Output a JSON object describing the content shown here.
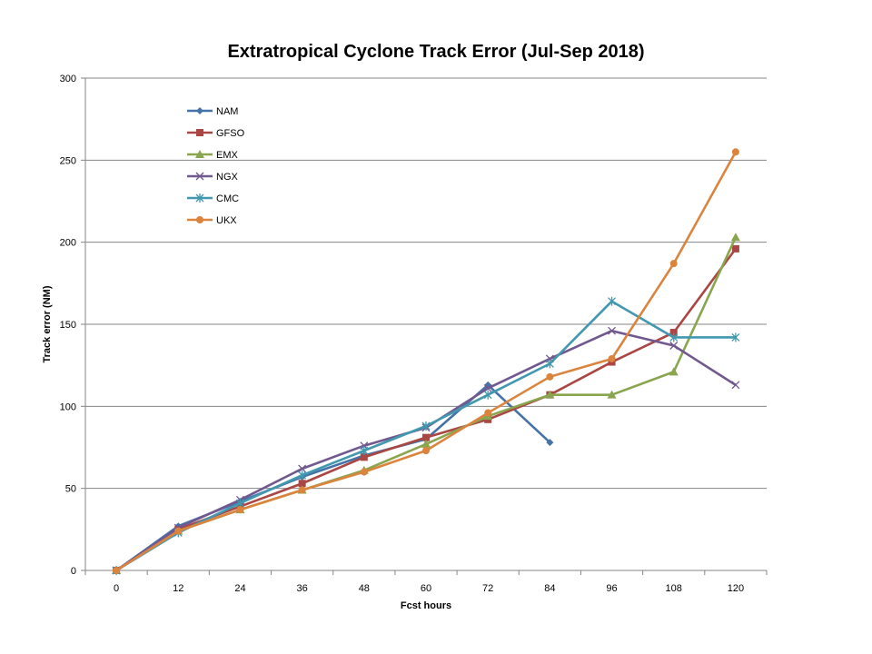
{
  "chart_data": {
    "type": "line",
    "title": "Extratropical Cyclone Track Error (Jul-Sep 2018)",
    "xlabel": "Fcst hours",
    "ylabel": "Track error  (NM)",
    "categories": [
      "0",
      "12",
      "24",
      "36",
      "48",
      "60",
      "72",
      "84",
      "96",
      "108",
      "120"
    ],
    "ylim": [
      0,
      300
    ],
    "yticks": [
      0,
      50,
      100,
      150,
      200,
      250,
      300
    ],
    "grid": "horizontal",
    "legend_position": "top-left",
    "series": [
      {
        "name": "NAM",
        "color": "#4572A7",
        "marker": "diamond",
        "values": [
          0,
          27,
          42,
          57,
          70,
          80,
          113,
          78,
          null,
          null,
          null
        ]
      },
      {
        "name": "GFSO",
        "color": "#AA4643",
        "marker": "square",
        "values": [
          0,
          25,
          39,
          53,
          69,
          81,
          92,
          107,
          127,
          145,
          196
        ]
      },
      {
        "name": "EMX",
        "color": "#89A54E",
        "marker": "triangle",
        "values": [
          0,
          24,
          37,
          49,
          61,
          77,
          94,
          107,
          107,
          121,
          203
        ]
      },
      {
        "name": "NGX",
        "color": "#71588F",
        "marker": "x",
        "values": [
          0,
          26,
          43,
          62,
          76,
          87,
          111,
          129,
          146,
          137,
          113
        ]
      },
      {
        "name": "CMC",
        "color": "#4198AF",
        "marker": "star",
        "values": [
          0,
          23,
          41,
          58,
          73,
          88,
          107,
          126,
          164,
          142,
          142
        ]
      },
      {
        "name": "UKX",
        "color": "#DB843D",
        "marker": "circle",
        "values": [
          0,
          24,
          37,
          49,
          60,
          73,
          96,
          118,
          129,
          187,
          255
        ]
      }
    ]
  }
}
